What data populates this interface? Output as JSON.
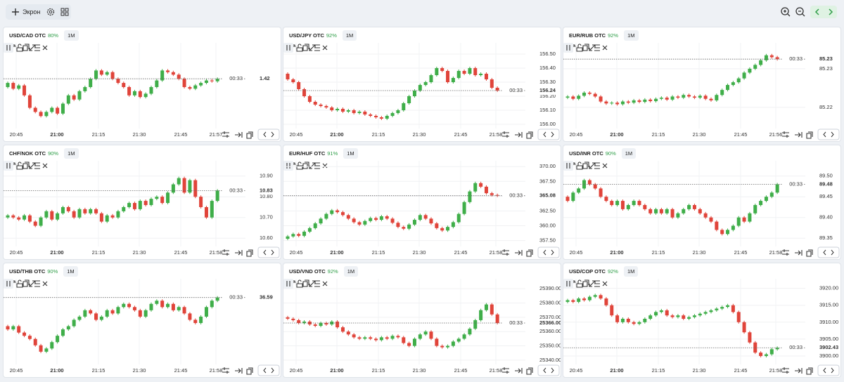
{
  "toolbar": {
    "screen_label": "Экрон"
  },
  "panels": [
    {
      "symbol": "USD/CAD OTC",
      "payout": "80%",
      "timeframe": "1M",
      "timer": "00:33",
      "chart_data": {
        "type": "candlestick",
        "xlabels": [
          "20:45",
          "21:00",
          "21:15",
          "21:30",
          "21:45",
          "21:57"
        ],
        "open": 1.41,
        "closes": [
          1.415,
          1.408,
          1.412,
          1.4,
          1.385,
          1.38,
          1.375,
          1.38,
          1.385,
          1.378,
          1.39,
          1.4,
          1.395,
          1.405,
          1.41,
          1.42,
          1.43,
          1.425,
          1.428,
          1.42,
          1.415,
          1.41,
          1.4,
          1.405,
          1.398,
          1.402,
          1.41,
          1.418,
          1.43,
          1.428,
          1.425,
          1.42,
          1.41,
          1.408,
          1.412,
          1.415,
          1.418,
          1.417,
          1.42
        ],
        "ylim": [
          1.36,
          1.46
        ],
        "price": 1.42
      }
    },
    {
      "symbol": "USD/JPY OTC",
      "payout": "92%",
      "timeframe": "1M",
      "timer": "00:33",
      "chart_data": {
        "type": "candlestick",
        "xlabels": [
          "20:45",
          "21:00",
          "21:15",
          "21:30",
          "21:45",
          "21:58"
        ],
        "open": 156.36,
        "closes": [
          156.32,
          156.3,
          156.25,
          156.2,
          156.16,
          156.14,
          156.13,
          156.12,
          156.1,
          156.11,
          156.09,
          156.1,
          156.08,
          156.09,
          156.07,
          156.06,
          156.05,
          156.04,
          156.06,
          156.08,
          156.1,
          156.15,
          156.2,
          156.24,
          156.28,
          156.3,
          156.35,
          156.4,
          156.38,
          156.3,
          156.33,
          156.38,
          156.36,
          156.4,
          156.35,
          156.36,
          156.32,
          156.26,
          156.24
        ],
        "ylim": [
          155.97,
          156.56
        ],
        "yticks": [
          {
            "value": 156,
            "label": "156.00"
          },
          {
            "value": 156.1,
            "label": "156.10"
          },
          {
            "value": 156.2,
            "label": "156.20"
          },
          {
            "value": 156.3,
            "label": "156.30"
          },
          {
            "value": 156.4,
            "label": "156.40"
          },
          {
            "value": 156.5,
            "label": "156.50"
          }
        ],
        "price": 156.24
      }
    },
    {
      "symbol": "EUR/RUB OTC",
      "payout": "92%",
      "timeframe": "1M",
      "timer": "00:33",
      "chart_data": {
        "type": "candlestick",
        "xlabels": [
          "20:45",
          "21:00",
          "21:15",
          "21:30",
          "21:45",
          "21:56"
        ],
        "open": 85.2225,
        "closes": [
          85.2228,
          85.2222,
          85.223,
          85.2238,
          85.2235,
          85.2228,
          85.2215,
          85.221,
          85.2212,
          85.2208,
          85.2215,
          85.2212,
          85.2218,
          85.2214,
          85.222,
          85.2216,
          85.2222,
          85.2225,
          85.222,
          85.2228,
          85.2225,
          85.2232,
          85.2228,
          85.2225,
          85.223,
          85.2222,
          85.2218,
          85.2232,
          85.2245,
          85.2258,
          85.2265,
          85.2275,
          85.229,
          85.23,
          85.231,
          85.2322,
          85.2335,
          85.233,
          85.2325
        ],
        "ylim": [
          85.2145,
          85.236
        ],
        "yticks": [
          85.22,
          85.23
        ],
        "price": {
          "value": 85.2325,
          "label": "85.23"
        }
      }
    },
    {
      "symbol": "CHF/NOK OTC",
      "payout": "90%",
      "timeframe": "1M",
      "timer": "00:33",
      "chart_data": {
        "type": "candlestick",
        "xlabels": [
          "20:45",
          "21:00",
          "21:15",
          "21:30",
          "21:45",
          "21:58"
        ],
        "open": 10.7,
        "closes": [
          10.71,
          10.7,
          10.69,
          10.71,
          10.68,
          10.66,
          10.7,
          10.73,
          10.69,
          10.72,
          10.75,
          10.73,
          10.7,
          10.74,
          10.72,
          10.74,
          10.72,
          10.68,
          10.71,
          10.7,
          10.73,
          10.75,
          10.77,
          10.74,
          10.78,
          10.76,
          10.79,
          10.8,
          10.77,
          10.82,
          10.86,
          10.89,
          10.82,
          10.88,
          10.8,
          10.75,
          10.7,
          10.78,
          10.83
        ],
        "ylim": [
          10.56,
          10.96
        ],
        "yticks": [
          {
            "value": 10.6,
            "label": "10.60"
          },
          {
            "value": 10.7,
            "label": "10.70"
          },
          {
            "value": 10.8,
            "label": "10.80"
          },
          {
            "value": 10.9,
            "label": "10.90"
          }
        ],
        "price": 10.83
      }
    },
    {
      "symbol": "EUR/HUF OTC",
      "payout": "91%",
      "timeframe": "1M",
      "timer": "00:33",
      "chart_data": {
        "type": "candlestick",
        "xlabels": [
          "20:45",
          "21:00",
          "21:15",
          "21:30",
          "21:45",
          "21:58"
        ],
        "open": 357.8,
        "closes": [
          358.2,
          358.6,
          358.3,
          359.0,
          359.6,
          360.4,
          361.2,
          362.0,
          362.6,
          362.3,
          361.8,
          361.2,
          360.6,
          360.2,
          360.8,
          361.3,
          361.0,
          361.6,
          361.2,
          360.5,
          359.8,
          359.5,
          360.2,
          361.0,
          361.8,
          361.2,
          360.4,
          359.6,
          359.2,
          359.8,
          360.6,
          362.0,
          364.0,
          365.8,
          367.2,
          366.6,
          365.5,
          365.2,
          365.08
        ],
        "ylim": [
          356.5,
          370.5
        ],
        "yticks": [
          {
            "value": 357.5,
            "label": "357.50"
          },
          {
            "value": 360,
            "label": "360.00"
          },
          {
            "value": 362.5,
            "label": "362.50"
          },
          {
            "value": 365,
            "label": "365.00"
          },
          {
            "value": 367.5,
            "label": "367.50"
          },
          {
            "value": 370,
            "label": "370.00"
          }
        ],
        "price": 365.08
      }
    },
    {
      "symbol": "USD/INR OTC",
      "payout": "90%",
      "timeframe": "1M",
      "timer": "00:33",
      "chart_data": {
        "type": "candlestick",
        "xlabels": [
          "20:45",
          "21:00",
          "21:15",
          "21:30",
          "21:45",
          "21:58"
        ],
        "open": 89.45,
        "closes": [
          89.44,
          89.46,
          89.47,
          89.49,
          89.48,
          89.47,
          89.45,
          89.44,
          89.43,
          89.44,
          89.42,
          89.43,
          89.44,
          89.43,
          89.42,
          89.41,
          89.42,
          89.41,
          89.42,
          89.4,
          89.41,
          89.42,
          89.43,
          89.42,
          89.41,
          89.4,
          89.39,
          89.37,
          89.36,
          89.37,
          89.38,
          89.4,
          89.39,
          89.41,
          89.43,
          89.44,
          89.45,
          89.46,
          89.48
        ],
        "ylim": [
          89.33,
          89.53
        ],
        "yticks": [
          89.35,
          {
            "value": 89.4,
            "label": "89.40"
          },
          89.45,
          {
            "value": 89.5,
            "label": "89.50"
          }
        ],
        "price": 89.48
      }
    },
    {
      "symbol": "USD/THB OTC",
      "payout": "90%",
      "timeframe": "1M",
      "timer": "00:33",
      "chart_data": {
        "type": "candlestick",
        "xlabels": [
          "20:45",
          "21:00",
          "21:15",
          "21:30",
          "21:45",
          "21:58"
        ],
        "open": 36.5,
        "closes": [
          36.49,
          36.5,
          36.48,
          36.47,
          36.46,
          36.44,
          36.42,
          36.43,
          36.45,
          36.47,
          36.49,
          36.5,
          36.52,
          36.53,
          36.55,
          36.54,
          36.52,
          36.53,
          36.55,
          36.54,
          36.56,
          36.57,
          36.56,
          36.55,
          36.53,
          36.55,
          36.57,
          36.58,
          36.56,
          36.57,
          36.55,
          36.56,
          36.54,
          36.52,
          36.51,
          36.53,
          36.56,
          36.58,
          36.59
        ],
        "ylim": [
          36.38,
          36.64
        ],
        "price": 36.59
      }
    },
    {
      "symbol": "USD/VND OTC",
      "payout": "92%",
      "timeframe": "1M",
      "timer": "00:33",
      "chart_data": {
        "type": "candlestick",
        "xlabels": [
          "20:45",
          "21:00",
          "21:15",
          "21:30",
          "21:45",
          "21:58"
        ],
        "open": 25370,
        "closes": [
          25369,
          25368,
          25366,
          25367,
          25365,
          25364,
          25366,
          25365,
          25367,
          25363,
          25360,
          25358,
          25356,
          25355,
          25356,
          25355,
          25354,
          25356,
          25355,
          25357,
          25356,
          25352,
          25350,
          25355,
          25358,
          25360,
          25355,
          25350,
          25349,
          25350,
          25353,
          25355,
          25358,
          25362,
          25368,
          25375,
          25379,
          25372,
          25366
        ],
        "ylim": [
          25337,
          25395
        ],
        "yticks": [
          {
            "value": 25340,
            "label": "25340.00"
          },
          {
            "value": 25350,
            "label": "25350.00"
          },
          {
            "value": 25360,
            "label": "25360.00"
          },
          {
            "value": 25370,
            "label": "25370.00"
          },
          {
            "value": 25380,
            "label": "25380.00"
          },
          {
            "value": 25390,
            "label": "25390.00"
          }
        ],
        "price": {
          "value": 25366,
          "label": "25366.00"
        }
      }
    },
    {
      "symbol": "USD/COP OTC",
      "payout": "92%",
      "timeframe": "1M",
      "timer": "00:33",
      "chart_data": {
        "type": "candlestick",
        "xlabels": [
          "20:45",
          "21:00",
          "21:15",
          "21:30",
          "21:45",
          "21:58"
        ],
        "open": 3916,
        "closes": [
          3916.5,
          3916,
          3917,
          3916.5,
          3917.5,
          3918,
          3917,
          3915,
          3912,
          3910,
          3911,
          3910,
          3909.5,
          3910,
          3911,
          3912,
          3913,
          3913.5,
          3912,
          3911.5,
          3912,
          3911,
          3911.5,
          3912,
          3912.5,
          3913,
          3913.5,
          3914,
          3914.5,
          3915,
          3913,
          3910,
          3907,
          3904,
          3901,
          3900,
          3900.5,
          3902,
          3902.43
        ],
        "ylim": [
          3897.5,
          3922
        ],
        "yticks": [
          {
            "value": 3900,
            "label": "3900.00"
          },
          {
            "value": 3905,
            "label": "3905.00"
          },
          {
            "value": 3910,
            "label": "3910.00"
          },
          {
            "value": 3915,
            "label": "3915.00"
          },
          {
            "value": 3920,
            "label": "3920.00"
          }
        ],
        "price": 3902.43
      }
    }
  ]
}
